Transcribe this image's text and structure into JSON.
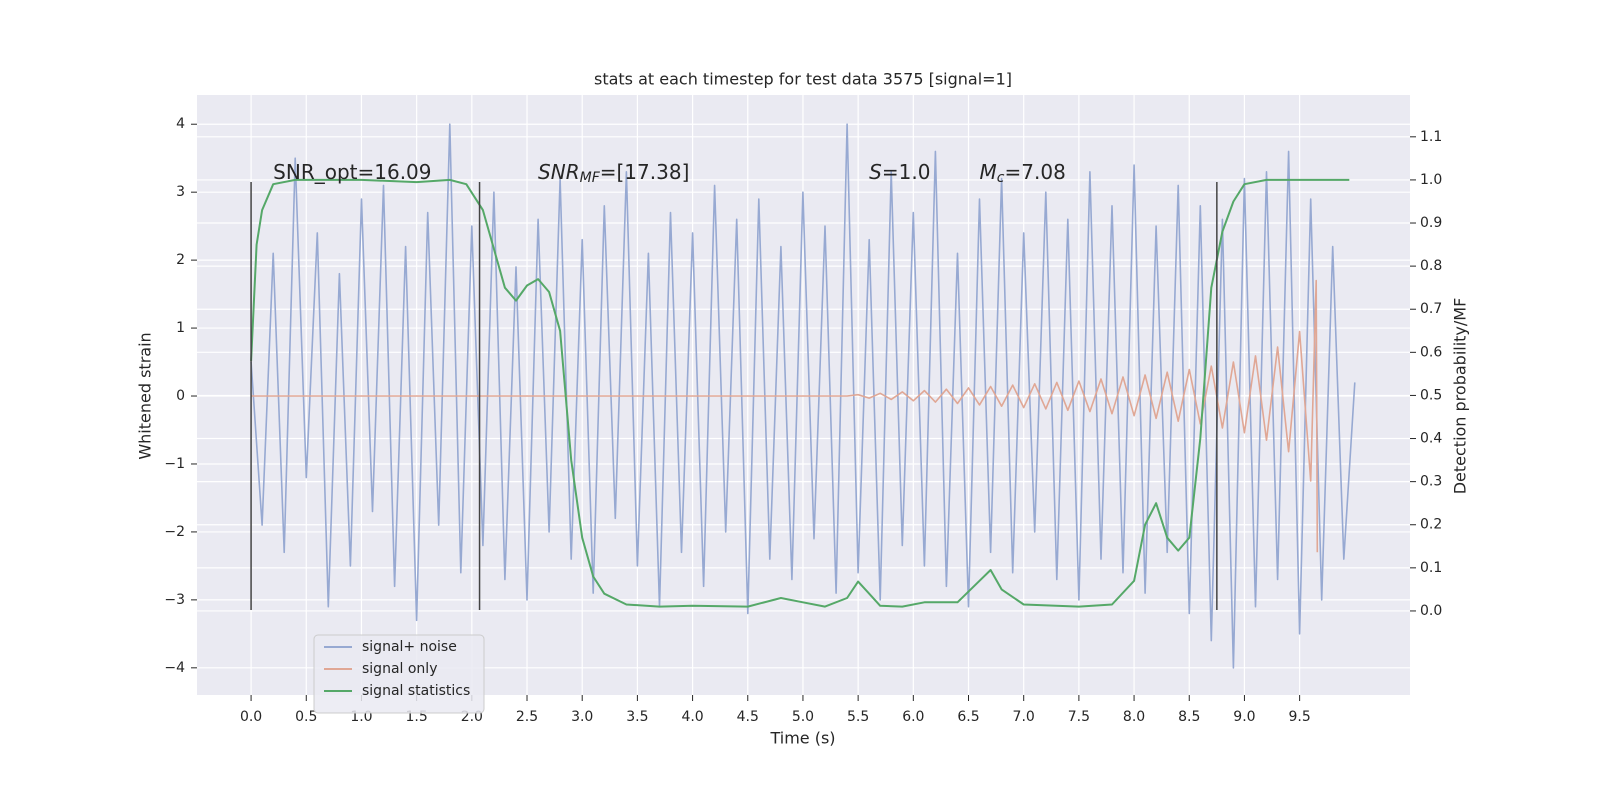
{
  "chart_data": {
    "type": "line",
    "title": "stats at each timestep for test data 3575 [signal=1]",
    "xlabel": "Time (s)",
    "ylabel": "Whitened strain",
    "y2label": "Detection probability/MF",
    "xlim": [
      -0.49,
      10.5
    ],
    "ylim": [
      -4.4,
      4.43
    ],
    "y2lim": [
      -0.195,
      1.197
    ],
    "xticks": [
      {
        "value": 0,
        "label": "0.0"
      },
      0.5,
      {
        "value": 1,
        "label": "1.0"
      },
      1.5,
      {
        "value": 2,
        "label": "2.0"
      },
      2.5,
      {
        "value": 3,
        "label": "3.0"
      },
      3.5,
      {
        "value": 4,
        "label": "4.0"
      },
      4.5,
      {
        "value": 5,
        "label": "5.0"
      },
      5.5,
      {
        "value": 6,
        "label": "6.0"
      },
      6.5,
      {
        "value": 7,
        "label": "7.0"
      },
      7.5,
      {
        "value": 8,
        "label": "8.0"
      },
      8.5,
      {
        "value": 9,
        "label": "9.0"
      },
      9.5
    ],
    "yticks": [
      {
        "value": -4,
        "label": "−4"
      },
      {
        "value": -3,
        "label": "−3"
      },
      {
        "value": -2,
        "label": "−2"
      },
      {
        "value": -1,
        "label": "−1"
      },
      0,
      1,
      2,
      3,
      4
    ],
    "y2ticks": [
      {
        "value": 0,
        "label": "0.0"
      },
      0.1,
      0.2,
      0.3,
      0.4,
      0.5,
      0.6,
      0.7,
      0.8,
      0.9,
      {
        "value": 1,
        "label": "1.0"
      },
      1.1
    ],
    "grid": true,
    "legend": "lower left",
    "vlines": [
      0,
      2.07,
      8.75
    ],
    "vline_range": [
      -3.15,
      3.15
    ],
    "vline_color": "#444444",
    "annotations": [
      {
        "x": 0.2,
        "y": 3.28,
        "parts": [
          {
            "text": "SNR_opt=16.09"
          }
        ]
      },
      {
        "x": 2.6,
        "y": 3.28,
        "parts": [
          {
            "text": "SNR",
            "italic": true
          },
          {
            "text": "MF",
            "italic": true,
            "sub": true
          },
          {
            "text": "=[17.38]"
          }
        ]
      },
      {
        "x": 5.6,
        "y": 3.28,
        "parts": [
          {
            "text": "S",
            "italic": true
          },
          {
            "text": "=1.0"
          }
        ]
      },
      {
        "x": 6.6,
        "y": 3.28,
        "parts": [
          {
            "text": "M",
            "italic": true
          },
          {
            "text": "c",
            "italic": true,
            "sub": true
          },
          {
            "text": "=7.08"
          }
        ]
      }
    ],
    "series": [
      {
        "name": "signal+ noise",
        "color": "#97a9d2",
        "axis": "y",
        "x": [
          0,
          0.1,
          0.2,
          0.3,
          0.4,
          0.5,
          0.6,
          0.7,
          0.8,
          0.9,
          1,
          1.1,
          1.2,
          1.3,
          1.4,
          1.5,
          1.6,
          1.7,
          1.8,
          1.9,
          2,
          2.1,
          2.2,
          2.3,
          2.4,
          2.5,
          2.6,
          2.7,
          2.8,
          2.9,
          3,
          3.1,
          3.2,
          3.3,
          3.4,
          3.5,
          3.6,
          3.7,
          3.8,
          3.9,
          4,
          4.1,
          4.2,
          4.3,
          4.4,
          4.5,
          4.6,
          4.7,
          4.8,
          4.9,
          5,
          5.1,
          5.2,
          5.3,
          5.4,
          5.5,
          5.6,
          5.7,
          5.8,
          5.9,
          6,
          6.1,
          6.2,
          6.3,
          6.4,
          6.5,
          6.6,
          6.7,
          6.8,
          6.9,
          7,
          7.1,
          7.2,
          7.3,
          7.4,
          7.5,
          7.6,
          7.7,
          7.8,
          7.9,
          8,
          8.1,
          8.2,
          8.3,
          8.4,
          8.5,
          8.6,
          8.7,
          8.8,
          8.9,
          9,
          9.1,
          9.2,
          9.3,
          9.4,
          9.5,
          9.6,
          9.7,
          9.8,
          9.9,
          10
        ],
        "values": [
          0.5,
          -1.9,
          2.1,
          -2.3,
          3.5,
          -1.2,
          2.4,
          -3.1,
          1.8,
          -2.5,
          2.9,
          -1.7,
          3.1,
          -2.8,
          2.2,
          -3.3,
          2.7,
          -1.9,
          4.0,
          -2.6,
          2.5,
          -2.2,
          3.0,
          -2.7,
          1.9,
          -3.0,
          2.6,
          -2.0,
          3.2,
          -2.4,
          2.3,
          -2.9,
          2.8,
          -1.8,
          3.3,
          -2.5,
          2.1,
          -3.1,
          2.7,
          -2.3,
          2.4,
          -2.8,
          3.1,
          -2.0,
          2.6,
          -3.2,
          2.9,
          -2.4,
          2.2,
          -2.7,
          3.0,
          -2.1,
          2.5,
          -2.9,
          4.0,
          -2.6,
          2.3,
          -3.0,
          3.3,
          -2.2,
          2.7,
          -2.5,
          3.6,
          -2.8,
          2.1,
          -3.1,
          2.9,
          -2.3,
          3.2,
          -2.6,
          2.4,
          -2.0,
          3.0,
          -2.7,
          2.6,
          -3.0,
          3.3,
          -2.4,
          2.8,
          -2.6,
          3.4,
          -2.9,
          2.5,
          -2.3,
          3.1,
          -3.2,
          2.8,
          -3.6,
          2.6,
          -4.0,
          3.2,
          -3.1,
          3.3,
          -2.7,
          3.6,
          -3.5,
          2.9,
          -3.0,
          2.2,
          -2.4,
          0.2
        ]
      },
      {
        "name": "signal only",
        "color": "#e0a795",
        "axis": "y",
        "x": [
          0,
          5.4,
          5.5,
          5.6,
          5.7,
          5.8,
          5.9,
          6,
          6.1,
          6.2,
          6.3,
          6.4,
          6.5,
          6.6,
          6.7,
          6.8,
          6.9,
          7,
          7.1,
          7.2,
          7.3,
          7.4,
          7.5,
          7.6,
          7.7,
          7.8,
          7.9,
          8,
          8.1,
          8.2,
          8.3,
          8.4,
          8.5,
          8.6,
          8.7,
          8.8,
          8.9,
          9,
          9.1,
          9.2,
          9.3,
          9.4,
          9.5,
          9.6,
          9.65,
          9.66
        ],
        "values": [
          0,
          0,
          0.02,
          -0.03,
          0.04,
          -0.05,
          0.06,
          -0.07,
          0.08,
          -0.09,
          0.1,
          -0.11,
          0.12,
          -0.13,
          0.14,
          -0.15,
          0.16,
          -0.17,
          0.18,
          -0.19,
          0.2,
          -0.21,
          0.22,
          -0.23,
          0.25,
          -0.26,
          0.28,
          -0.29,
          0.31,
          -0.33,
          0.35,
          -0.37,
          0.39,
          -0.41,
          0.44,
          -0.47,
          0.5,
          -0.54,
          0.59,
          -0.65,
          0.72,
          -0.82,
          0.95,
          -1.25,
          1.7,
          -2.3
        ]
      },
      {
        "name": "signal statistics",
        "color": "#55a868",
        "axis": "y2",
        "x": [
          0,
          0.05,
          0.1,
          0.2,
          0.4,
          1,
          1.5,
          1.8,
          1.95,
          2.1,
          2.2,
          2.3,
          2.4,
          2.5,
          2.6,
          2.7,
          2.8,
          2.9,
          3,
          3.1,
          3.2,
          3.4,
          3.7,
          4,
          4.5,
          4.8,
          5,
          5.2,
          5.4,
          5.5,
          5.6,
          5.7,
          5.9,
          6.1,
          6.4,
          6.6,
          6.7,
          6.8,
          7,
          7.5,
          7.8,
          8,
          8.1,
          8.2,
          8.3,
          8.4,
          8.5,
          8.6,
          8.7,
          8.8,
          8.9,
          9,
          9.2,
          9.95
        ],
        "values": [
          0.58,
          0.85,
          0.93,
          0.99,
          1.0,
          1.0,
          0.995,
          1.0,
          0.99,
          0.93,
          0.84,
          0.75,
          0.72,
          0.755,
          0.77,
          0.74,
          0.65,
          0.35,
          0.17,
          0.08,
          0.04,
          0.015,
          0.01,
          0.012,
          0.01,
          0.03,
          0.02,
          0.01,
          0.03,
          0.068,
          0.04,
          0.012,
          0.01,
          0.02,
          0.02,
          0.07,
          0.095,
          0.05,
          0.015,
          0.01,
          0.015,
          0.07,
          0.2,
          0.25,
          0.17,
          0.14,
          0.17,
          0.4,
          0.75,
          0.88,
          0.95,
          0.99,
          1.0,
          1.0
        ]
      }
    ]
  }
}
